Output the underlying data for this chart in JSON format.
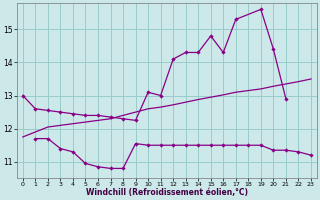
{
  "xlabel": "Windchill (Refroidissement éolien,°C)",
  "background_color": "#cce8e8",
  "line_color": "#880088",
  "grid_color": "#99cccc",
  "line1_x": [
    0,
    1,
    2,
    3,
    4,
    5,
    6,
    7,
    8,
    9,
    10,
    11,
    12,
    13,
    14,
    15,
    16,
    17,
    19,
    20,
    21
  ],
  "line1_y": [
    13.0,
    12.6,
    12.55,
    12.5,
    12.45,
    12.4,
    12.4,
    12.35,
    12.3,
    12.25,
    13.1,
    13.0,
    14.1,
    14.3,
    14.3,
    14.8,
    14.3,
    15.3,
    15.6,
    14.4,
    12.9
  ],
  "line2_x": [
    1,
    2,
    3,
    4,
    5,
    6,
    7,
    8,
    9,
    10,
    11,
    12,
    13,
    14,
    15,
    16,
    17,
    18,
    19,
    20,
    21,
    22,
    23
  ],
  "line2_y": [
    11.7,
    11.7,
    11.4,
    11.3,
    10.95,
    10.85,
    10.8,
    10.8,
    11.55,
    11.5,
    11.5,
    11.5,
    11.5,
    11.5,
    11.5,
    11.5,
    11.5,
    11.5,
    11.5,
    11.35,
    11.35,
    11.3,
    11.2
  ],
  "line3_x": [
    0,
    1,
    2,
    3,
    4,
    5,
    6,
    7,
    8,
    9,
    10,
    11,
    12,
    13,
    14,
    15,
    16,
    17,
    18,
    19,
    20,
    21,
    22,
    23
  ],
  "line3_y": [
    11.75,
    11.9,
    12.05,
    12.1,
    12.15,
    12.2,
    12.25,
    12.3,
    12.4,
    12.5,
    12.6,
    12.65,
    12.72,
    12.8,
    12.88,
    12.95,
    13.02,
    13.1,
    13.15,
    13.2,
    13.28,
    13.35,
    13.42,
    13.5
  ],
  "ylim": [
    10.5,
    15.8
  ],
  "yticks": [
    11,
    12,
    13,
    14,
    15
  ],
  "xticks": [
    0,
    1,
    2,
    3,
    4,
    5,
    6,
    7,
    8,
    9,
    10,
    11,
    12,
    13,
    14,
    15,
    16,
    17,
    18,
    19,
    20,
    21,
    22,
    23
  ]
}
